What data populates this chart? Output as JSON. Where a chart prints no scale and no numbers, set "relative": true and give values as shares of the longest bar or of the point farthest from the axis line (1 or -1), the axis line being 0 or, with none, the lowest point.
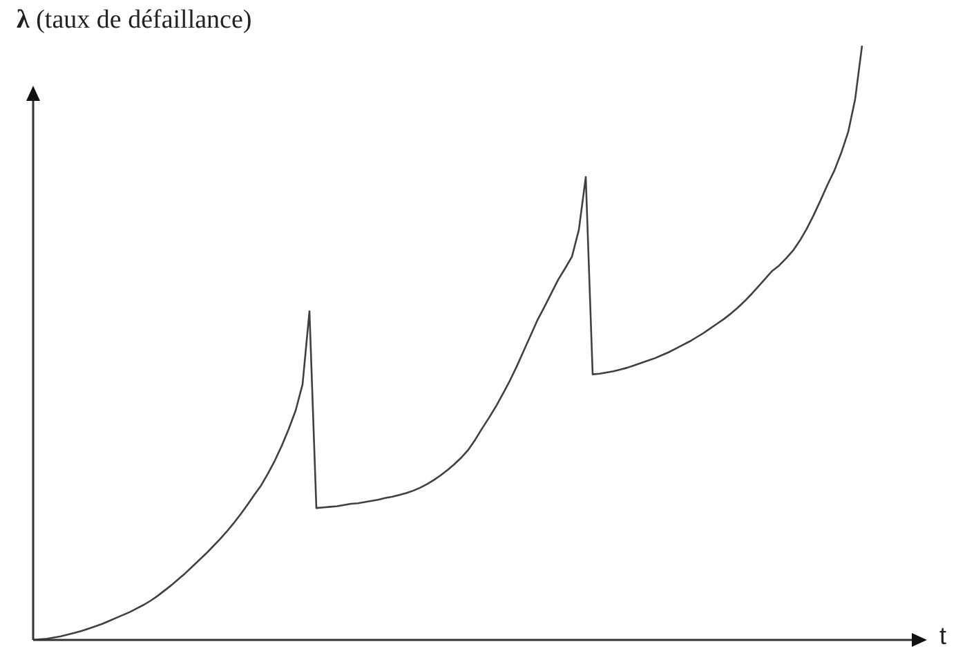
{
  "chart_data": {
    "type": "line",
    "relative": true,
    "xlabel": "t",
    "ylabel": "λ (taux de défaillance)",
    "color": "#404040",
    "marker": "none",
    "categories": [
      null,
      null,
      null,
      null,
      null,
      null,
      null,
      null,
      null,
      null,
      null,
      null,
      null,
      null,
      null,
      null,
      null,
      null,
      null,
      null,
      null,
      null,
      null,
      null,
      null,
      null,
      null,
      null,
      null,
      null,
      null,
      null,
      null,
      null,
      null,
      null,
      null,
      null,
      null,
      null,
      null,
      null,
      null,
      null,
      null,
      null,
      null,
      null,
      null,
      null,
      null,
      null,
      null,
      null,
      null,
      null,
      null,
      null,
      null,
      null,
      null,
      null,
      null,
      null,
      null,
      null,
      null,
      null,
      null,
      null,
      null,
      null,
      null,
      null,
      null,
      null,
      null,
      null,
      null,
      null,
      null,
      null,
      null,
      null,
      null,
      null,
      null,
      null,
      null,
      null,
      null,
      null,
      null,
      null,
      null,
      null,
      null,
      null,
      null,
      null,
      null,
      null,
      null,
      null,
      null,
      null,
      null,
      null,
      null,
      null,
      null,
      null,
      null,
      null,
      null,
      null,
      null,
      null,
      null,
      null,
      null
    ],
    "values": [
      0,
      0.001,
      0.002,
      0.004,
      0.006,
      0.009,
      0.012,
      0.015,
      0.019,
      0.023,
      0.027,
      0.032,
      0.037,
      0.042,
      0.047,
      0.053,
      0.059,
      0.066,
      0.074,
      0.083,
      0.092,
      0.102,
      0.112,
      0.123,
      0.134,
      0.145,
      0.157,
      0.169,
      0.182,
      0.196,
      0.211,
      0.227,
      0.244,
      0.26,
      0.28,
      0.302,
      0.327,
      0.355,
      0.386,
      0.43,
      0.553,
      0.222,
      0.223,
      0.224,
      0.225,
      0.227,
      0.229,
      0.23,
      0.232,
      0.234,
      0.236,
      0.239,
      0.241,
      0.244,
      0.247,
      0.251,
      0.256,
      0.262,
      0.269,
      0.277,
      0.286,
      0.296,
      0.307,
      0.32,
      0.337,
      0.356,
      0.374,
      0.393,
      0.414,
      0.436,
      0.46,
      0.486,
      0.512,
      0.538,
      0.56,
      0.583,
      0.606,
      0.625,
      0.645,
      0.69,
      0.779,
      0.447,
      0.448,
      0.45,
      0.452,
      0.455,
      0.458,
      0.462,
      0.466,
      0.47,
      0.474,
      0.479,
      0.484,
      0.49,
      0.496,
      0.502,
      0.509,
      0.516,
      0.524,
      0.532,
      0.54,
      0.549,
      0.559,
      0.57,
      0.582,
      0.595,
      0.608,
      0.621,
      0.63,
      0.642,
      0.655,
      0.672,
      0.692,
      0.715,
      0.74,
      0.766,
      0.79,
      0.82,
      0.855,
      0.91,
      1
    ]
  }
}
